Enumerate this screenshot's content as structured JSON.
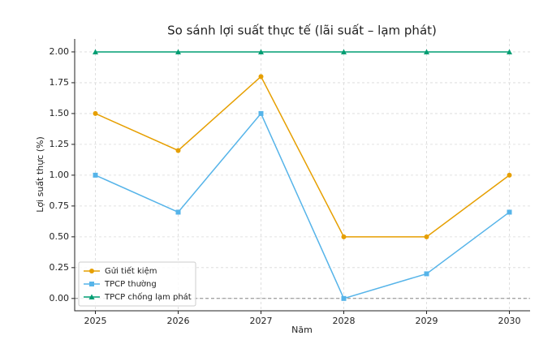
{
  "chart_data": {
    "type": "line",
    "title": "So sánh lợi suất thực tế (lãi suất – lạm phát)",
    "x_label": "Năm",
    "y_label": "Lợi suất thực (%)",
    "x": [
      2025,
      2026,
      2027,
      2028,
      2029,
      2030
    ],
    "series": [
      {
        "name": "Gửi tiết kiệm",
        "color": "#e69f00",
        "marker": "circle",
        "values": [
          1.5,
          1.2,
          1.8,
          0.5,
          0.5,
          1.0
        ]
      },
      {
        "name": "TPCP thường",
        "color": "#56b4e9",
        "marker": "square",
        "values": [
          1.0,
          0.7,
          1.5,
          0.0,
          0.2,
          0.7
        ]
      },
      {
        "name": "TPCP chống lạm phát",
        "color": "#009e73",
        "marker": "triangle",
        "values": [
          2.0,
          2.0,
          2.0,
          2.0,
          2.0,
          2.0
        ]
      }
    ],
    "xlim": [
      2024.75,
      2030.25
    ],
    "xticks": [
      2025,
      2026,
      2027,
      2028,
      2029,
      2030
    ],
    "ylim": [
      -0.1,
      2.105
    ],
    "yticks": [
      {
        "value": 0,
        "label": "0.00"
      },
      {
        "value": 0.25,
        "label": "0.25"
      },
      {
        "value": 0.5,
        "label": "0.50"
      },
      {
        "value": 0.75,
        "label": "0.75"
      },
      {
        "value": 1,
        "label": "1.00"
      },
      {
        "value": 1.25,
        "label": "1.25"
      },
      {
        "value": 1.5,
        "label": "1.50"
      },
      {
        "value": 1.75,
        "label": "1.75"
      },
      {
        "value": 2,
        "label": "2.00"
      }
    ],
    "reference_line": 0,
    "grid": true,
    "legend_position": "lower-left"
  }
}
